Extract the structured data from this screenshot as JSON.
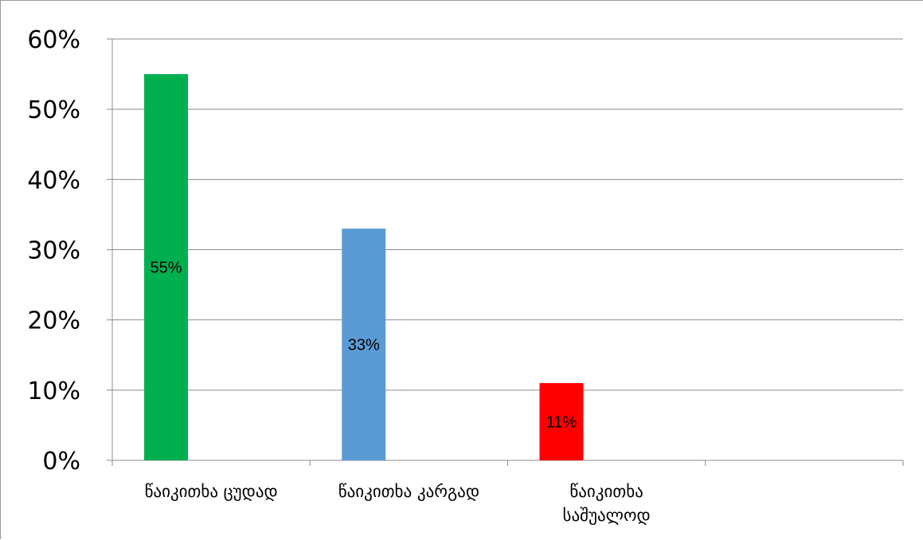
{
  "chart_data": {
    "type": "bar",
    "categories": [
      [
        "წაიკითხა ცუდად"
      ],
      [
        "წაიკითხა კარგად"
      ],
      [
        "წაიკითხა",
        "საშუალოდ"
      ],
      [
        ""
      ]
    ],
    "values": [
      55,
      33,
      11,
      null
    ],
    "data_labels": [
      "55%",
      "33%",
      "11%",
      ""
    ],
    "bar_colors": [
      "#00b050",
      "#5b9bd5",
      "#ff0000"
    ],
    "y_ticks": [
      "0%",
      "10%",
      "20%",
      "30%",
      "40%",
      "50%",
      "60%"
    ],
    "ylim": [
      0,
      60
    ],
    "grid": true,
    "legend": "none",
    "title": "",
    "xlabel": "",
    "ylabel": ""
  }
}
